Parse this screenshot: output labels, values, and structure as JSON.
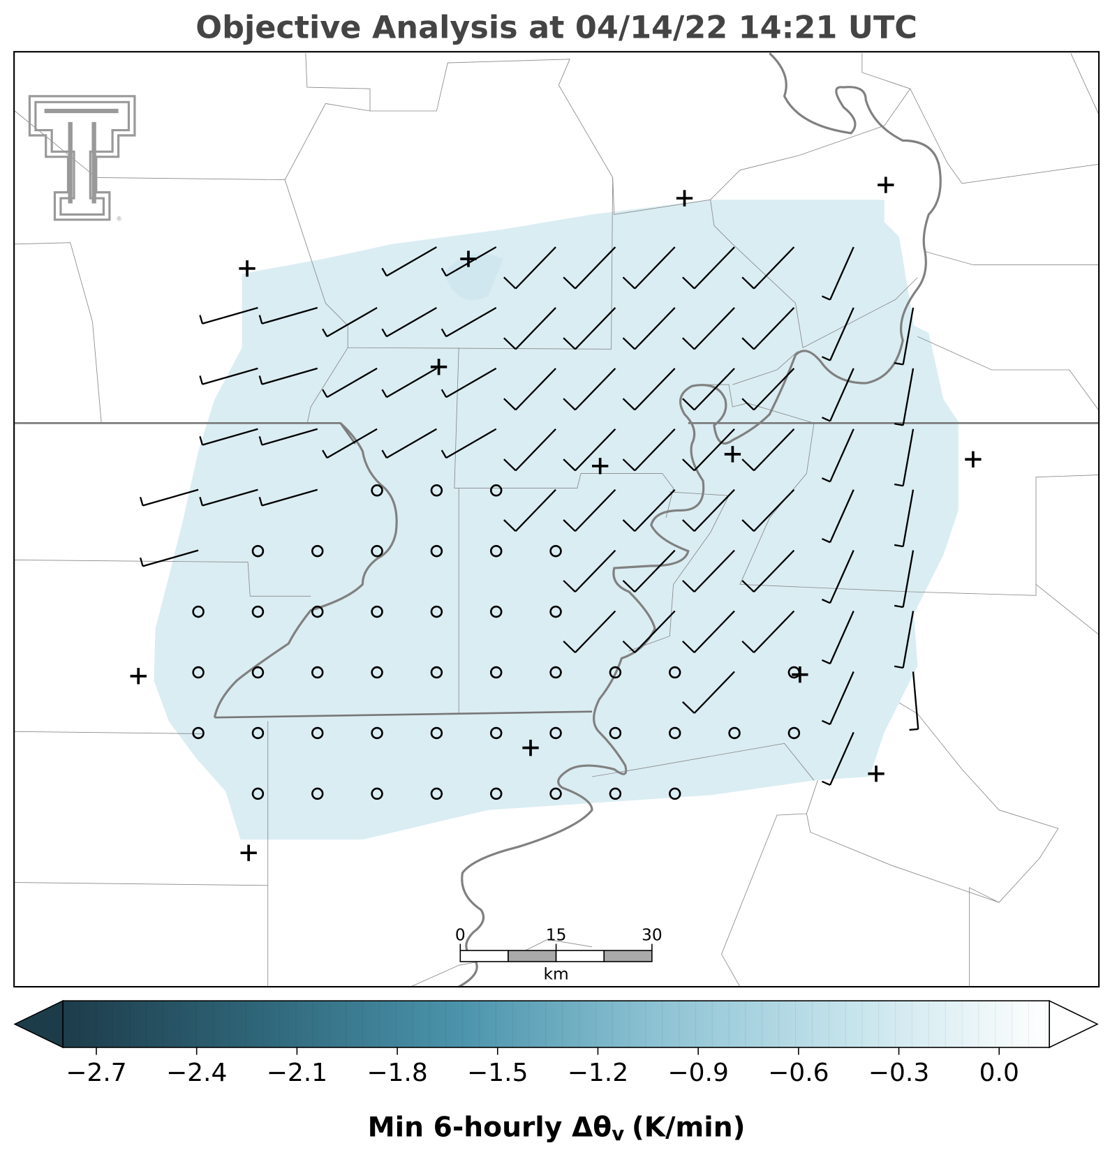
{
  "title": "Objective Analysis at 04/14/22 14:21 UTC",
  "colorbar": {
    "label": {
      "text": "Min 6-hourly Δθ",
      "sub": "v",
      "unit": "(K/min)"
    },
    "clim": [
      -2.8,
      0.15
    ],
    "colors": [
      "#1d3c4a",
      "#2f6679",
      "#4a93ab",
      "#8cc2d3",
      "#c6e4ec",
      "#ffffff"
    ],
    "ticks": [
      {
        "value": -2.7,
        "label": "−2.7"
      },
      {
        "value": -2.4,
        "label": "−2.4"
      },
      {
        "value": -2.1,
        "label": "−2.1"
      },
      {
        "value": -1.8,
        "label": "−1.8"
      },
      {
        "value": -1.5,
        "label": "−1.5"
      },
      {
        "value": -1.2,
        "label": "−1.2"
      },
      {
        "value": -0.9,
        "label": "−0.9"
      },
      {
        "value": -0.6,
        "label": "−0.6"
      },
      {
        "value": -0.3,
        "label": "−0.3"
      },
      {
        "value": 0.0,
        "label": "0.0"
      }
    ]
  },
  "scale_bar": {
    "ticks": [
      0,
      15,
      30
    ],
    "unit": "km"
  }
}
